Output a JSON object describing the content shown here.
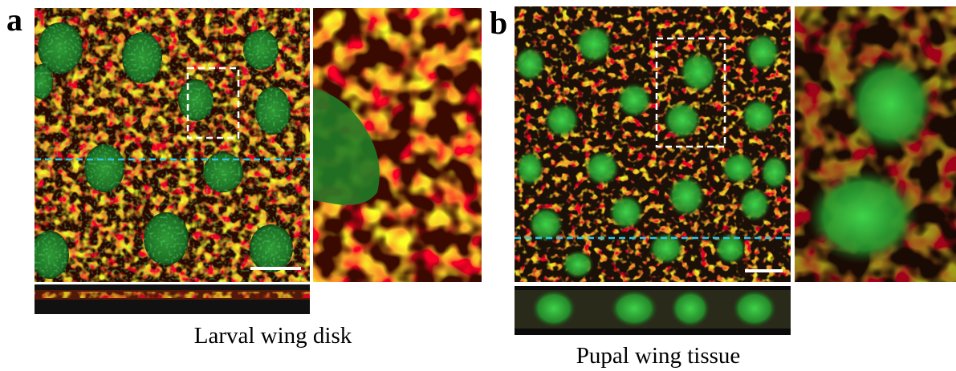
{
  "panels": [
    {
      "label": "a",
      "caption": "Larval wing disk"
    },
    {
      "label": "b",
      "caption": "Pupal wing tissue"
    }
  ]
}
